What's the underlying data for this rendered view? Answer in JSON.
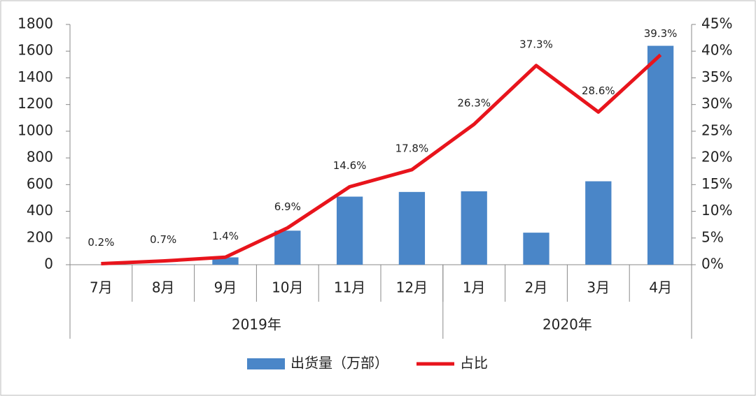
{
  "chart_data": {
    "type": "bar_line",
    "categories": [
      "7月",
      "8月",
      "9月",
      "10月",
      "11月",
      "12月",
      "1月",
      "2月",
      "3月",
      "4月"
    ],
    "groups": [
      {
        "label": "2019年",
        "count": 6
      },
      {
        "label": "2020年",
        "count": 4
      }
    ],
    "series": [
      {
        "name": "出货量（万部）",
        "type": "bar",
        "color": "#4a86c8",
        "values": [
          0,
          3,
          55,
          255,
          510,
          545,
          550,
          240,
          625,
          1640
        ]
      },
      {
        "name": "占比",
        "type": "line",
        "axis": "y2",
        "color": "#e8141c",
        "values": [
          0.2,
          0.7,
          1.4,
          6.9,
          14.6,
          17.8,
          26.3,
          37.3,
          28.6,
          39.3
        ],
        "value_labels": [
          "0.2%",
          "0.7%",
          "1.4%",
          "6.9%",
          "14.6%",
          "17.8%",
          "26.3%",
          "37.3%",
          "28.6%",
          "39.3%"
        ]
      }
    ],
    "ylim": [
      0,
      1800
    ],
    "yticks": [
      0,
      200,
      400,
      600,
      800,
      1000,
      1200,
      1400,
      1600,
      1800
    ],
    "y2lim": [
      0,
      45
    ],
    "y2ticks": [
      {
        "value": 0,
        "label": "0%"
      },
      {
        "value": 5,
        "label": "5%"
      },
      {
        "value": 10,
        "label": "10%"
      },
      {
        "value": 15,
        "label": "15%"
      },
      {
        "value": 20,
        "label": "20%"
      },
      {
        "value": 25,
        "label": "25%"
      },
      {
        "value": 30,
        "label": "30%"
      },
      {
        "value": 35,
        "label": "35%"
      },
      {
        "value": 40,
        "label": "40%"
      },
      {
        "value": 45,
        "label": "45%"
      }
    ],
    "legend": "bottom"
  }
}
